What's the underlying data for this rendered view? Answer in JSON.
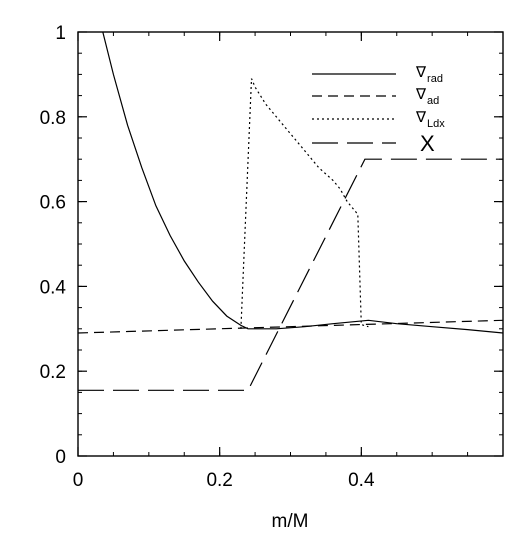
{
  "chart_data": {
    "type": "line",
    "title": "",
    "xlabel": "m/M",
    "ylabel": "",
    "xlim": [
      0,
      0.6
    ],
    "ylim": [
      0,
      1
    ],
    "xticks": [
      0,
      0.2,
      0.4
    ],
    "xtick_labels": [
      "0",
      "0.2",
      "0.4"
    ],
    "yticks": [
      0,
      0.2,
      0.4,
      0.6,
      0.8,
      1
    ],
    "ytick_labels": [
      "0",
      "0.2",
      "0.4",
      "0.6",
      "0.8",
      "1"
    ],
    "grid": false,
    "legend_position": "top-right",
    "series": [
      {
        "name_symbol": "∇",
        "name_sub": "rad",
        "style": "solid",
        "x": [
          0.035,
          0.05,
          0.07,
          0.09,
          0.11,
          0.13,
          0.15,
          0.17,
          0.19,
          0.21,
          0.23,
          0.24,
          0.28,
          0.32,
          0.36,
          0.41,
          0.45,
          0.5,
          0.55,
          0.6
        ],
        "y": [
          1.0,
          0.9,
          0.78,
          0.68,
          0.59,
          0.52,
          0.46,
          0.41,
          0.365,
          0.33,
          0.308,
          0.3,
          0.3,
          0.305,
          0.312,
          0.32,
          0.312,
          0.305,
          0.298,
          0.29
        ]
      },
      {
        "name_symbol": "∇",
        "name_sub": "ad",
        "style": "short-dash",
        "x": [
          0,
          0.6
        ],
        "y": [
          0.29,
          0.32
        ]
      },
      {
        "name_symbol": "∇",
        "name_sub": "Ldx",
        "style": "dotted",
        "x": [
          0.23,
          0.245,
          0.25,
          0.265,
          0.28,
          0.3,
          0.32,
          0.34,
          0.36,
          0.37,
          0.38,
          0.395,
          0.4,
          0.41
        ],
        "y": [
          0.3,
          0.89,
          0.87,
          0.83,
          0.8,
          0.76,
          0.72,
          0.68,
          0.65,
          0.63,
          0.6,
          0.57,
          0.31,
          0.305
        ]
      },
      {
        "name_symbol": "X",
        "name_sub": "",
        "style": "long-dash",
        "x": [
          0,
          0.24,
          0.405,
          0.6
        ],
        "y": [
          0.155,
          0.155,
          0.7,
          0.7
        ]
      }
    ]
  }
}
